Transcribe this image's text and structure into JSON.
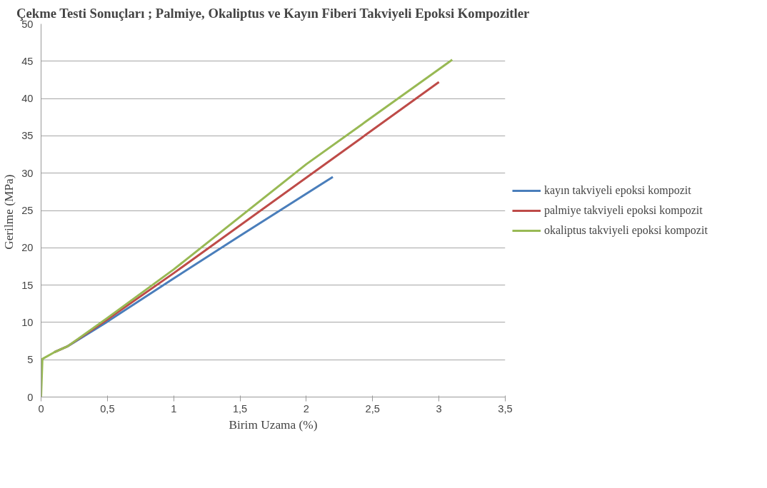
{
  "chart_data": {
    "type": "line",
    "title": "Çekme Testi Sonuçları ; Palmiye, Okaliptus ve Kayın Fiberi Takviyeli Epoksi Kompozitler",
    "xlabel": "Birim Uzama (%)",
    "ylabel": "Gerilme  (MPa)",
    "series": [
      {
        "name": "kayın takviyeli epoksi kompozit",
        "color": "#4a7ebb",
        "x": [
          0.1,
          0.2,
          0.5,
          1,
          1.5,
          2.2
        ],
        "values": [
          6,
          6.8,
          10.1,
          15.9,
          21.6,
          29.5
        ]
      },
      {
        "name": "palmiye takviyeli epoksi kompozit",
        "color": "#be4b48",
        "x": [
          0.1,
          0.2,
          0.5,
          1,
          2,
          3
        ],
        "values": [
          6,
          6.8,
          10.4,
          16.6,
          29.4,
          42.2
        ]
      },
      {
        "name": "okaliptus takviyeli epoksi kompozit",
        "color": "#98b954",
        "x": [
          0,
          0.01,
          0.1,
          0.2,
          0.5,
          1,
          2,
          3.1
        ],
        "values": [
          0,
          5.1,
          6,
          6.8,
          10.6,
          17.1,
          31.2,
          45.2
        ]
      }
    ],
    "xlim": [
      0,
      3.5
    ],
    "xticks": [
      0,
      {
        "value": 0.5,
        "label": "0,5"
      },
      1,
      {
        "value": 1.5,
        "label": "1,5"
      },
      2,
      {
        "value": 2.5,
        "label": "2,5"
      },
      3,
      {
        "value": 3.5,
        "label": "3,5"
      }
    ],
    "ylim": [
      0,
      50
    ],
    "yticks": [
      0,
      5,
      10,
      15,
      20,
      25,
      30,
      35,
      40,
      45,
      50
    ],
    "grid": "y",
    "legend": "right",
    "marker": "none",
    "line_style": "solid"
  }
}
